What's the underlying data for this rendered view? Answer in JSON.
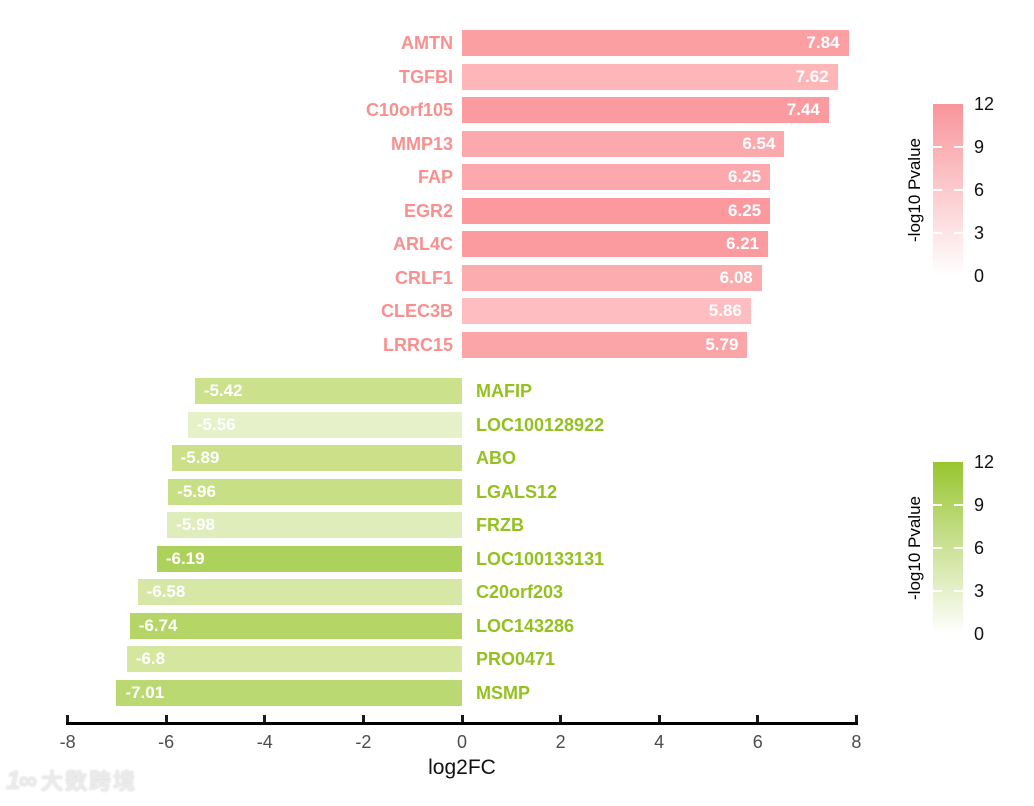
{
  "chart_data": {
    "type": "bar",
    "orientation": "horizontal",
    "title": "",
    "xlabel": "log2FC",
    "ylabel": "",
    "xlim": [
      -8,
      8
    ],
    "x_ticks": [
      -8,
      -6,
      -4,
      -2,
      0,
      2,
      4,
      6,
      8
    ],
    "grid": false,
    "series": [
      {
        "name": "up-regulated",
        "direction": "positive",
        "label_color": "#f9908f",
        "bars": [
          {
            "gene": "AMTN",
            "log2fc": 7.84,
            "color": "#fb9fa3"
          },
          {
            "gene": "TGFBI",
            "log2fc": 7.62,
            "color": "#ffb6b9"
          },
          {
            "gene": "C10orf105",
            "log2fc": 7.44,
            "color": "#fb9ba0"
          },
          {
            "gene": "MMP13",
            "log2fc": 6.54,
            "color": "#fca9ad"
          },
          {
            "gene": "FAP",
            "log2fc": 6.25,
            "color": "#fca8ac"
          },
          {
            "gene": "EGR2",
            "log2fc": 6.25,
            "color": "#fb999e"
          },
          {
            "gene": "ARL4C",
            "log2fc": 6.21,
            "color": "#fb9b9f"
          },
          {
            "gene": "CRLF1",
            "log2fc": 6.08,
            "color": "#fcabaf"
          },
          {
            "gene": "CLEC3B",
            "log2fc": 5.86,
            "color": "#febdc0"
          },
          {
            "gene": "LRRC15",
            "log2fc": 5.79,
            "color": "#fca5a9"
          }
        ]
      },
      {
        "name": "down-regulated",
        "direction": "negative",
        "label_color": "#94c11f",
        "bars": [
          {
            "gene": "MAFIP",
            "log2fc": -5.42,
            "color": "#cce18c"
          },
          {
            "gene": "LOC100128922",
            "log2fc": -5.56,
            "color": "#e6f0c9"
          },
          {
            "gene": "ABO",
            "log2fc": -5.89,
            "color": "#cbe089"
          },
          {
            "gene": "LGALS12",
            "log2fc": -5.96,
            "color": "#c8df85"
          },
          {
            "gene": "FRZB",
            "log2fc": -5.98,
            "color": "#dfedbb"
          },
          {
            "gene": "LOC100133131",
            "log2fc": -6.19,
            "color": "#add25c"
          },
          {
            "gene": "C20orf203",
            "log2fc": -6.58,
            "color": "#d7e8a6"
          },
          {
            "gene": "LOC143286",
            "log2fc": -6.74,
            "color": "#b5d667"
          },
          {
            "gene": "PRO0471",
            "log2fc": -6.8,
            "color": "#d5e79f"
          },
          {
            "gene": "MSMP",
            "log2fc": -7.01,
            "color": "#bbd972"
          }
        ]
      }
    ],
    "legends": [
      {
        "title": "-log10 Pvalue",
        "ticks": [
          12,
          9,
          6,
          3,
          0
        ],
        "top_color": "#f8959a",
        "bottom_color": "#ffffff"
      },
      {
        "title": "-log10 Pvalue",
        "ticks": [
          12,
          9,
          6,
          3,
          0
        ],
        "top_color": "#98c52f",
        "bottom_color": "#ffffff"
      }
    ]
  },
  "watermark": {
    "logo": "1∞",
    "text": "大数跨境"
  }
}
